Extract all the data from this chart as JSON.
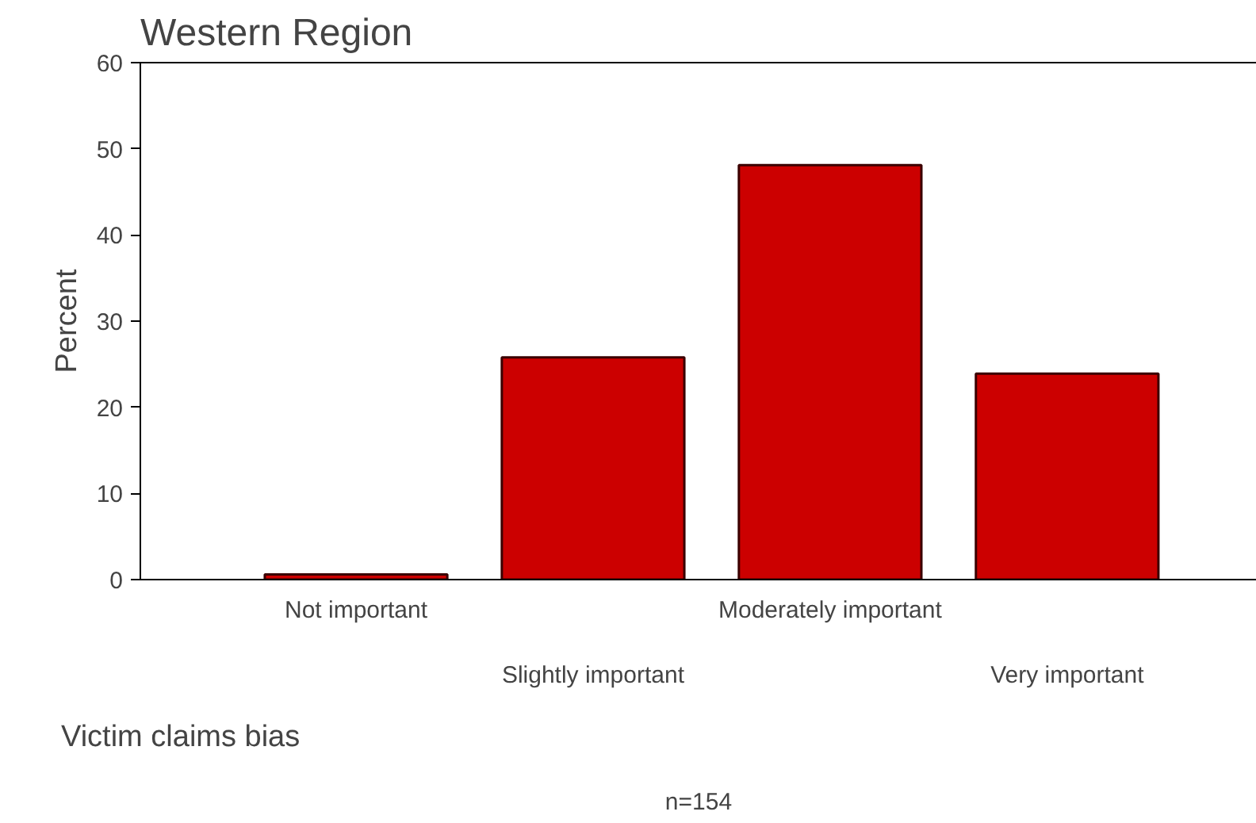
{
  "chart_data": {
    "type": "bar",
    "title": "Western Region",
    "xlabel": "Victim claims bias",
    "ylabel": "Percent",
    "categories": [
      "Not important",
      "Slightly important",
      "Moderately important",
      "Very important"
    ],
    "values": [
      0.6,
      25.8,
      48.1,
      23.9
    ],
    "color": "#cc0000",
    "ylim": [
      0,
      60
    ],
    "yticks": [
      0,
      10,
      20,
      30,
      40,
      50,
      60
    ],
    "grid": false,
    "annotations": [
      "n=154"
    ]
  }
}
